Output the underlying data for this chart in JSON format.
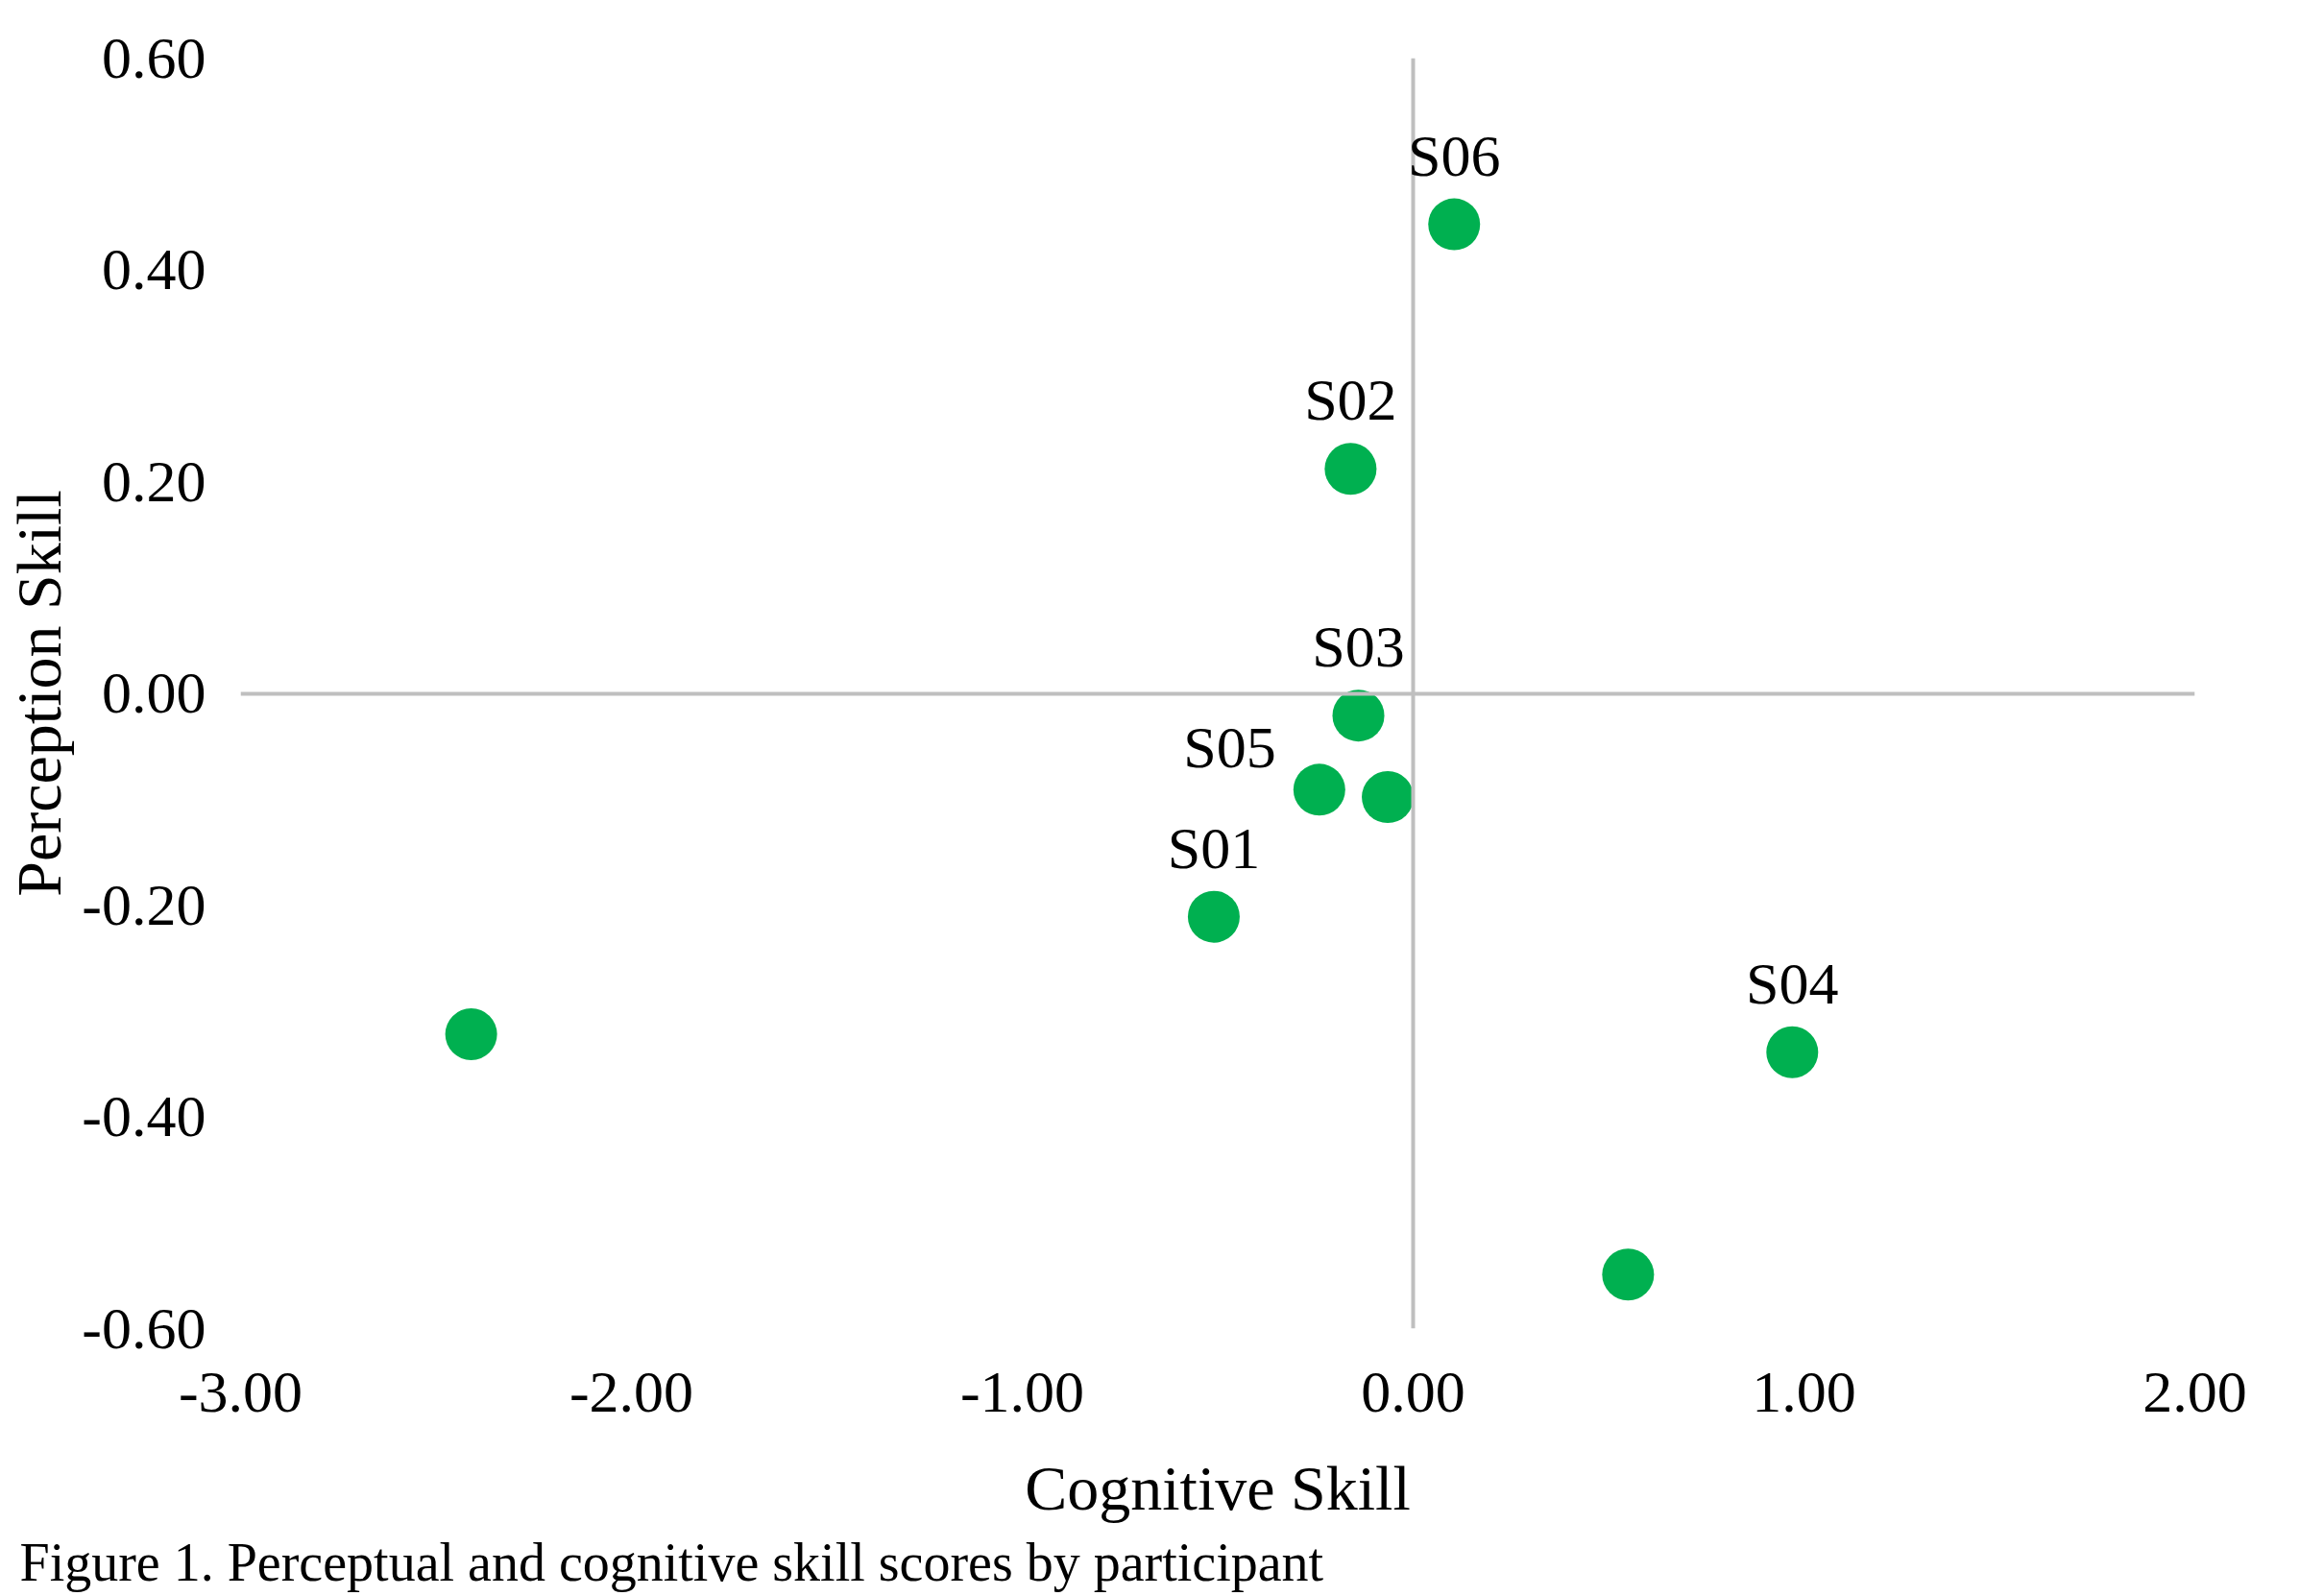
{
  "chart_data": {
    "type": "scatter",
    "xlabel": "Cognitive Skill",
    "ylabel": "Perception Skill",
    "annotations": [
      "Figure 1. Perceptual and cognitive skill scores by participant"
    ],
    "x": [
      0.105,
      -0.16,
      -0.14,
      -0.24,
      -0.065,
      -0.51,
      -2.41,
      0.97,
      0.55
    ],
    "values": [
      0.443,
      0.212,
      -0.021,
      -0.091,
      -0.098,
      -0.211,
      -0.322,
      -0.339,
      -0.549
    ],
    "value_labels": [
      "S06",
      "S02",
      "S03",
      "S05",
      null,
      "S01",
      null,
      "S04",
      null
    ],
    "color": "#00b050",
    "marker": "circle",
    "xlim": [
      -3.0,
      2.0
    ],
    "xticks": [
      {
        "value": -3,
        "label": "-3.00"
      },
      {
        "value": -2,
        "label": "-2.00"
      },
      {
        "value": -1,
        "label": "-1.00"
      },
      {
        "value": 0,
        "label": "0.00"
      },
      {
        "value": 1,
        "label": "1.00"
      },
      {
        "value": 2,
        "label": "2.00"
      }
    ],
    "ylim": [
      -0.6,
      0.6
    ],
    "yticks": [
      {
        "value": -0.6,
        "label": "-0.60"
      },
      {
        "value": -0.4,
        "label": "-0.40"
      },
      {
        "value": -0.2,
        "label": "-0.20"
      },
      {
        "value": 0,
        "label": "0.00"
      },
      {
        "value": 0.2,
        "label": "0.20"
      },
      {
        "value": 0.4,
        "label": "0.40"
      },
      {
        "value": 0.6,
        "label": "0.60"
      }
    ]
  }
}
